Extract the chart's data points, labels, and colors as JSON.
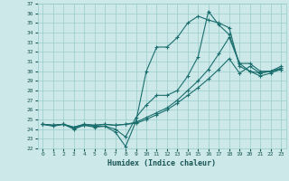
{
  "xlabel": "Humidex (Indice chaleur)",
  "background_color": "#cce8e8",
  "grid_color": "#99cccc",
  "line_color": "#1a6e6e",
  "xlim": [
    -0.5,
    23.5
  ],
  "ylim": [
    22,
    37
  ],
  "xticks": [
    0,
    1,
    2,
    3,
    4,
    5,
    6,
    7,
    8,
    9,
    10,
    11,
    12,
    13,
    14,
    15,
    16,
    17,
    18,
    19,
    20,
    21,
    22,
    23
  ],
  "yticks": [
    22,
    23,
    24,
    25,
    26,
    27,
    28,
    29,
    30,
    31,
    32,
    33,
    34,
    35,
    36,
    37
  ],
  "series": [
    {
      "x": [
        0,
        1,
        2,
        3,
        4,
        5,
        6,
        7,
        8,
        9,
        10,
        11,
        12,
        13,
        14,
        15,
        16,
        17,
        18,
        19,
        20,
        21,
        22,
        23
      ],
      "y": [
        24.5,
        24.3,
        24.5,
        24.0,
        24.4,
        24.2,
        24.3,
        23.7,
        22.2,
        24.8,
        30.0,
        32.5,
        32.5,
        33.5,
        35.0,
        35.7,
        35.3,
        35.0,
        34.5,
        30.5,
        30.0,
        29.5,
        29.8,
        30.2
      ]
    },
    {
      "x": [
        0,
        1,
        2,
        3,
        4,
        5,
        6,
        7,
        8,
        9,
        10,
        11,
        12,
        13,
        14,
        15,
        16,
        17,
        18,
        19,
        20,
        21,
        22,
        23
      ],
      "y": [
        24.5,
        24.4,
        24.5,
        24.1,
        24.4,
        24.3,
        24.3,
        24.0,
        23.2,
        25.2,
        26.5,
        27.5,
        27.5,
        28.0,
        29.5,
        31.5,
        36.2,
        34.8,
        33.8,
        30.8,
        30.0,
        29.8,
        30.0,
        30.2
      ]
    },
    {
      "x": [
        0,
        1,
        2,
        3,
        4,
        5,
        6,
        7,
        8,
        9,
        10,
        11,
        12,
        13,
        14,
        15,
        16,
        17,
        18,
        19,
        20,
        21,
        22,
        23
      ],
      "y": [
        24.5,
        24.4,
        24.5,
        24.2,
        24.5,
        24.4,
        24.5,
        24.4,
        24.5,
        24.7,
        25.2,
        25.7,
        26.2,
        27.0,
        28.0,
        29.0,
        30.2,
        31.8,
        33.5,
        30.8,
        30.8,
        30.0,
        30.0,
        30.5
      ]
    },
    {
      "x": [
        0,
        1,
        2,
        3,
        4,
        5,
        6,
        7,
        8,
        9,
        10,
        11,
        12,
        13,
        14,
        15,
        16,
        17,
        18,
        19,
        20,
        21,
        22,
        23
      ],
      "y": [
        24.5,
        24.4,
        24.5,
        24.2,
        24.5,
        24.4,
        24.5,
        24.4,
        24.5,
        24.6,
        25.0,
        25.5,
        26.0,
        26.7,
        27.5,
        28.3,
        29.2,
        30.2,
        31.3,
        29.8,
        30.5,
        29.8,
        30.0,
        30.3
      ]
    }
  ]
}
